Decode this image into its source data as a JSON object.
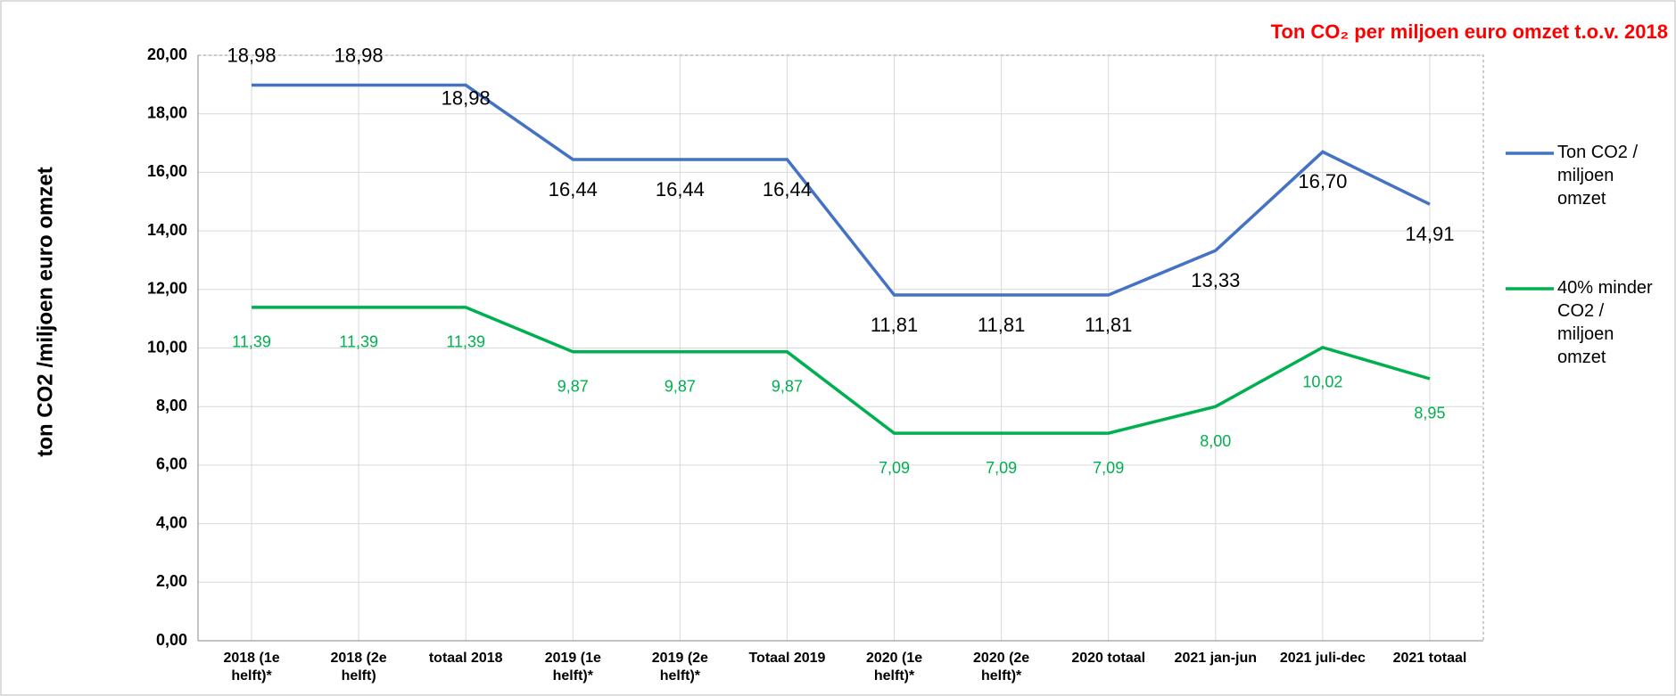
{
  "chart_data": {
    "type": "line",
    "title": "Ton CO₂ per miljoen euro omzet t.o.v. 2018",
    "y_label": "ton CO2 /miljoen euro omzet",
    "categories": [
      "2018 (1e helft)*",
      "2018 (2e helft)",
      "totaal 2018",
      "2019 (1e helft)*",
      "2019 (2e helft)*",
      "Totaal 2019",
      "2020 (1e helft)*",
      "2020 (2e helft)*",
      "2020 totaal",
      "2021 jan-jun",
      "2021 juli-dec",
      "2021 totaal"
    ],
    "series": [
      {
        "name": "Ton CO2 / miljoen omzet",
        "color": "#4472c4",
        "values": [
          18.98,
          18.98,
          18.98,
          16.44,
          16.44,
          16.44,
          11.81,
          11.81,
          11.81,
          13.33,
          16.7,
          14.91
        ],
        "value_labels": [
          "18,98",
          "18,98",
          "18,98",
          "16,44",
          "16,44",
          "16,44",
          "11,81",
          "11,81",
          "11,81",
          "13,33",
          "16,70",
          "14,91"
        ]
      },
      {
        "name": "40% minder CO2 / miljoen omzet",
        "color": "#00b050",
        "values": [
          11.39,
          11.39,
          11.39,
          9.87,
          9.87,
          9.87,
          7.09,
          7.09,
          7.09,
          8.0,
          10.02,
          8.95
        ],
        "value_labels": [
          "11,39",
          "11,39",
          "11,39",
          "9,87",
          "9,87",
          "9,87",
          "7,09",
          "7,09",
          "7,09",
          "8,00",
          "10,02",
          "8,95"
        ]
      }
    ],
    "ylim": [
      0,
      20
    ],
    "yticks": [
      {
        "value": 0,
        "label": "0,00"
      },
      {
        "value": 2,
        "label": "2,00"
      },
      {
        "value": 4,
        "label": "4,00"
      },
      {
        "value": 6,
        "label": "6,00"
      },
      {
        "value": 8,
        "label": "8,00"
      },
      {
        "value": 10,
        "label": "10,00"
      },
      {
        "value": 12,
        "label": "12,00"
      },
      {
        "value": 14,
        "label": "14,00"
      },
      {
        "value": 16,
        "label": "16,00"
      },
      {
        "value": 18,
        "label": "18,00"
      },
      {
        "value": 20,
        "label": "20,00"
      }
    ],
    "grid": true,
    "legend": "right"
  }
}
